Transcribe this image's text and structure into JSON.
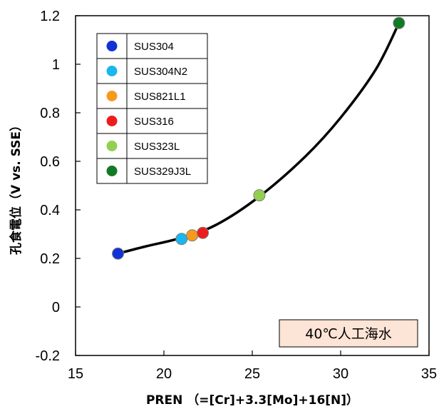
{
  "chart_data": {
    "type": "scatter",
    "xlabel": "PREN （=[Cr]+3.3[Mo]+16[N]）",
    "ylabel": "孔食電位（V vs. SSE）",
    "xlim": [
      15,
      35
    ],
    "ylim": [
      -0.2,
      1.2
    ],
    "x_ticks": [
      15,
      20,
      25,
      30,
      35
    ],
    "y_ticks": [
      -0.2,
      0,
      0.2,
      0.4,
      0.6,
      0.8,
      1,
      1.2
    ],
    "y_tick_labels": [
      "-0.2",
      "0",
      "0.2",
      "0.4",
      "0.6",
      "0.8",
      "1",
      "1.2"
    ],
    "grid": false,
    "legend_position": "top-left",
    "series": [
      {
        "name": "SUS304",
        "color": "#1032d8",
        "points": [
          [
            17.4,
            0.22
          ]
        ]
      },
      {
        "name": "SUS304N2",
        "color": "#1ab6ee",
        "points": [
          [
            21.0,
            0.28
          ]
        ]
      },
      {
        "name": "SUS821L1",
        "color": "#f79a1c",
        "points": [
          [
            21.6,
            0.295
          ]
        ]
      },
      {
        "name": "SUS316",
        "color": "#ee1c1c",
        "points": [
          [
            22.2,
            0.305
          ]
        ]
      },
      {
        "name": "SUS323L",
        "color": "#92d050",
        "points": [
          [
            25.4,
            0.46
          ]
        ]
      },
      {
        "name": "SUS329J3L",
        "color": "#117a24",
        "points": [
          [
            33.3,
            1.17
          ]
        ]
      }
    ],
    "trend_curve": {
      "color": "#000000",
      "points": [
        [
          17.4,
          0.22
        ],
        [
          19,
          0.25
        ],
        [
          21,
          0.285
        ],
        [
          23,
          0.34
        ],
        [
          25.4,
          0.455
        ],
        [
          28,
          0.62
        ],
        [
          30,
          0.78
        ],
        [
          32,
          0.98
        ],
        [
          33.3,
          1.17
        ]
      ]
    },
    "annotation": "40℃人工海水"
  }
}
